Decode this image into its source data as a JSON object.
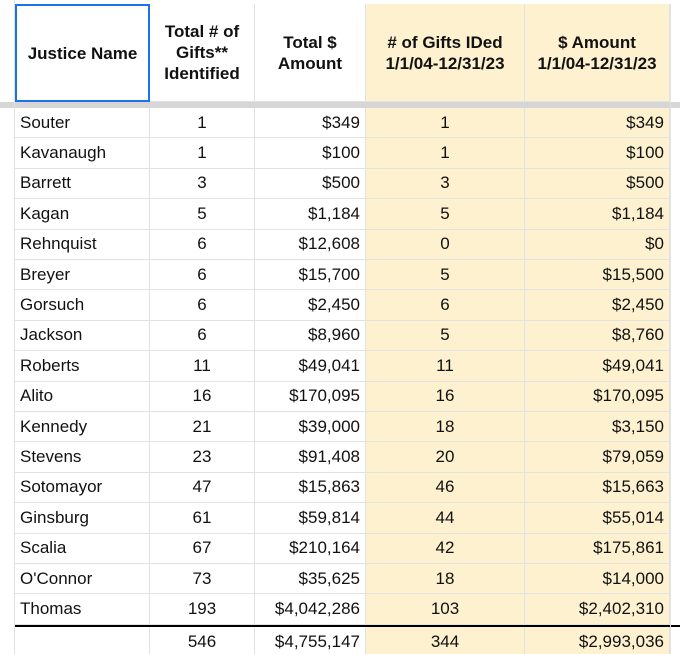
{
  "table": {
    "header": [
      "Justice Name",
      "Total # of Gifts** Identified",
      "Total $ Amount",
      "# of Gifts IDed 1/1/04-12/31/23",
      "$ Amount 1/1/04-12/31/23"
    ],
    "rows": [
      [
        "Souter",
        "1",
        "$349",
        "1",
        "$349"
      ],
      [
        "Kavanaugh",
        "1",
        "$100",
        "1",
        "$100"
      ],
      [
        "Barrett",
        "3",
        "$500",
        "3",
        "$500"
      ],
      [
        "Kagan",
        "5",
        "$1,184",
        "5",
        "$1,184"
      ],
      [
        "Rehnquist",
        "6",
        "$12,608",
        "0",
        "$0"
      ],
      [
        "Breyer",
        "6",
        "$15,700",
        "5",
        "$15,500"
      ],
      [
        "Gorsuch",
        "6",
        "$2,450",
        "6",
        "$2,450"
      ],
      [
        "Jackson",
        "6",
        "$8,960",
        "5",
        "$8,760"
      ],
      [
        "Roberts",
        "11",
        "$49,041",
        "11",
        "$49,041"
      ],
      [
        "Alito",
        "16",
        "$170,095",
        "16",
        "$170,095"
      ],
      [
        "Kennedy",
        "21",
        "$39,000",
        "18",
        "$3,150"
      ],
      [
        "Stevens",
        "23",
        "$91,408",
        "20",
        "$79,059"
      ],
      [
        "Sotomayor",
        "47",
        "$15,863",
        "46",
        "$15,663"
      ],
      [
        "Ginsburg",
        "61",
        "$59,814",
        "44",
        "$55,014"
      ],
      [
        "Scalia",
        "67",
        "$210,164",
        "42",
        "$175,861"
      ],
      [
        "O'Connor",
        "73",
        "$35,625",
        "18",
        "$14,000"
      ],
      [
        "Thomas",
        "193",
        "$4,042,286",
        "103",
        "$2,402,310"
      ]
    ],
    "totals": [
      "546",
      "$4,755,147",
      "344",
      "$2,993,036"
    ]
  }
}
